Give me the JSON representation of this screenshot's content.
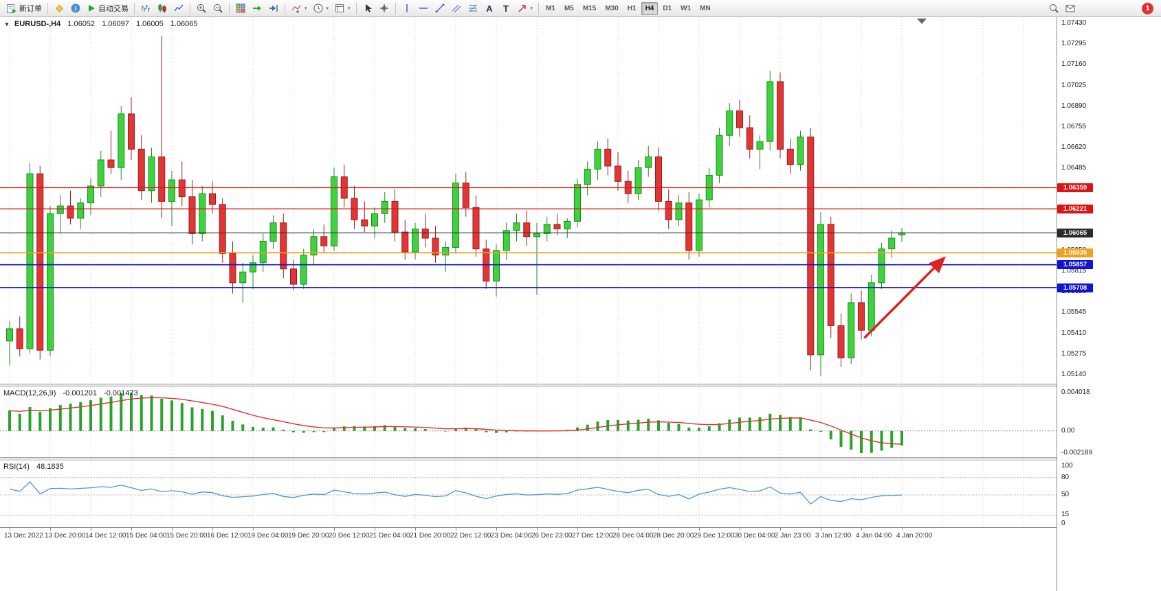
{
  "toolbar": {
    "new_order_label": "新订单",
    "auto_trading_label": "自动交易",
    "timeframes": [
      "M1",
      "M5",
      "M15",
      "M30",
      "H1",
      "H4",
      "D1",
      "W1",
      "MN"
    ],
    "active_timeframe": "H4",
    "notification_count": "1"
  },
  "chart_header": {
    "symbol": "EURUSD-,H4",
    "open": "1.06052",
    "high": "1.06097",
    "low": "1.06005",
    "close": "1.06065"
  },
  "indicators": {
    "macd_label": "MACD(12,26,9)",
    "macd_value": "-0.001201",
    "macd_signal_value": "-0.001473",
    "macd_scale_top": "0.004018",
    "macd_scale_zero": "0.00",
    "macd_scale_bottom": "-0.002189",
    "rsi_label": "RSI(14)",
    "rsi_value": "48.1835",
    "rsi_scale": [
      "100",
      "80",
      "50",
      "15",
      "0"
    ]
  },
  "chart_data": {
    "type": "candlestick",
    "symbol": "EURUSD",
    "timeframe": "H4",
    "current_ohlc": [
      1.06052,
      1.06097,
      1.06005,
      1.06065
    ],
    "price_axis": {
      "top_label": 1.0743,
      "bottom_label": 1.0514,
      "step": 0.00135
    },
    "scale_labels": [
      "1.07430",
      "1.07295",
      "1.07160",
      "1.07025",
      "1.06890",
      "1.06755",
      "1.06620",
      "1.06485",
      "1.05950",
      "1.05815",
      "1.05680",
      "1.05545",
      "1.05410",
      "1.05275",
      "1.05140"
    ],
    "hlines": [
      {
        "label": "1.06359",
        "price": 1.06359,
        "color": "#d81616",
        "width": 1.3,
        "role": "resistance-line"
      },
      {
        "label": "1.06221",
        "price": 1.06221,
        "color": "#d81616",
        "width": 1.3,
        "role": "resistance-line"
      },
      {
        "label": "1.06065",
        "price": 1.06065,
        "color": "#2b2b2b",
        "width": 1.0,
        "role": "current-price-line"
      },
      {
        "label": "1.05935",
        "price": 1.05935,
        "color": "#efa11e",
        "width": 1.7,
        "role": "support-line"
      },
      {
        "label": "1.05857",
        "price": 1.05857,
        "color": "#1414cf",
        "width": 1.7,
        "role": "support-line"
      },
      {
        "label": "1.05708",
        "price": 1.05708,
        "color": "#1414cf",
        "width": 1.7,
        "role": "support-line"
      }
    ],
    "time_labels": [
      "13 Dec 2022",
      "13 Dec 20:00",
      "14 Dec 12:00",
      "15 Dec 04:00",
      "15 Dec 20:00",
      "16 Dec 12:00",
      "19 Dec 04:00",
      "19 Dec 20:00",
      "20 Dec 12:00",
      "21 Dec 04:00",
      "21 Dec 20:00",
      "22 Dec 12:00",
      "23 Dec 04:00",
      "26 Dec 23:00",
      "27 Dec 12:00",
      "28 Dec 04:00",
      "28 Dec 20:00",
      "29 Dec 12:00",
      "30 Dec 04:00",
      "2 Jan 23:00",
      "3 Jan 12:00",
      "4 Jan 04:00",
      "4 Jan 20:00"
    ],
    "candles": [
      [
        1.0536,
        1.0549,
        1.052,
        1.0544
      ],
      [
        1.0544,
        1.0552,
        1.0526,
        1.0531
      ],
      [
        1.0531,
        1.0652,
        1.0528,
        1.0645
      ],
      [
        1.0645,
        1.065,
        1.0524,
        1.053
      ],
      [
        1.053,
        1.0624,
        1.0526,
        1.0619
      ],
      [
        1.0619,
        1.0631,
        1.0606,
        1.0624
      ],
      [
        1.0624,
        1.0634,
        1.0612,
        1.0616
      ],
      [
        1.0616,
        1.0629,
        1.0609,
        1.0626
      ],
      [
        1.0626,
        1.0642,
        1.0618,
        1.0637
      ],
      [
        1.0637,
        1.066,
        1.063,
        1.0654
      ],
      [
        1.0654,
        1.0673,
        1.0645,
        1.0649
      ],
      [
        1.0649,
        1.0689,
        1.0641,
        1.0684
      ],
      [
        1.0684,
        1.0695,
        1.0654,
        1.0661
      ],
      [
        1.0661,
        1.067,
        1.0628,
        1.0634
      ],
      [
        1.0634,
        1.0662,
        1.0626,
        1.0656
      ],
      [
        1.0656,
        1.0735,
        1.0616,
        1.0627
      ],
      [
        1.0627,
        1.0647,
        1.0611,
        1.0641
      ],
      [
        1.0641,
        1.0653,
        1.0624,
        1.063
      ],
      [
        1.063,
        1.0641,
        1.0599,
        1.0606
      ],
      [
        1.0606,
        1.0637,
        1.0601,
        1.0632
      ],
      [
        1.0632,
        1.064,
        1.0619,
        1.0625
      ],
      [
        1.0625,
        1.0629,
        1.0587,
        1.0593
      ],
      [
        1.0593,
        1.0601,
        1.0567,
        1.0574
      ],
      [
        1.0574,
        1.0587,
        1.0561,
        1.0581
      ],
      [
        1.0581,
        1.0592,
        1.057,
        1.0587
      ],
      [
        1.0587,
        1.0606,
        1.0581,
        1.0601
      ],
      [
        1.0601,
        1.0618,
        1.0596,
        1.0613
      ],
      [
        1.0613,
        1.0619,
        1.0577,
        1.0583
      ],
      [
        1.0583,
        1.0589,
        1.0569,
        1.0573
      ],
      [
        1.0573,
        1.0596,
        1.057,
        1.0592
      ],
      [
        1.0592,
        1.0609,
        1.0586,
        1.0604
      ],
      [
        1.0604,
        1.0612,
        1.0594,
        1.0598
      ],
      [
        1.0598,
        1.0649,
        1.0595,
        1.0643
      ],
      [
        1.0643,
        1.0651,
        1.0623,
        1.0629
      ],
      [
        1.0629,
        1.0637,
        1.0609,
        1.0615
      ],
      [
        1.0615,
        1.0627,
        1.0607,
        1.0611
      ],
      [
        1.0611,
        1.0623,
        1.0603,
        1.0619
      ],
      [
        1.0619,
        1.0633,
        1.0613,
        1.0627
      ],
      [
        1.0627,
        1.0635,
        1.0601,
        1.0607
      ],
      [
        1.0607,
        1.0615,
        1.0589,
        1.0594
      ],
      [
        1.0594,
        1.0613,
        1.0589,
        1.0609
      ],
      [
        1.0609,
        1.0619,
        1.0597,
        1.0603
      ],
      [
        1.0603,
        1.0611,
        1.0587,
        1.0592
      ],
      [
        1.0592,
        1.0601,
        1.0581,
        1.0597
      ],
      [
        1.0597,
        1.0645,
        1.0593,
        1.0639
      ],
      [
        1.0639,
        1.0646,
        1.0617,
        1.0623
      ],
      [
        1.0623,
        1.0631,
        1.0591,
        1.0596
      ],
      [
        1.0596,
        1.0602,
        1.057,
        1.0575
      ],
      [
        1.0575,
        1.0599,
        1.0565,
        1.0595
      ],
      [
        1.0595,
        1.0613,
        1.0589,
        1.0608
      ],
      [
        1.0608,
        1.0619,
        1.0601,
        1.0613
      ],
      [
        1.0613,
        1.0621,
        1.0598,
        1.0604
      ],
      [
        1.0604,
        1.0613,
        1.0566,
        1.0606
      ],
      [
        1.0606,
        1.0617,
        1.0601,
        1.0612
      ],
      [
        1.0612,
        1.0619,
        1.0605,
        1.0609
      ],
      [
        1.0609,
        1.0616,
        1.0603,
        1.0614
      ],
      [
        1.0614,
        1.0642,
        1.061,
        1.0638
      ],
      [
        1.0638,
        1.0653,
        1.0631,
        1.0648
      ],
      [
        1.0648,
        1.0666,
        1.0641,
        1.0661
      ],
      [
        1.0661,
        1.0668,
        1.0644,
        1.065
      ],
      [
        1.065,
        1.0659,
        1.0634,
        1.064
      ],
      [
        1.064,
        1.0647,
        1.0626,
        1.0632
      ],
      [
        1.0632,
        1.0654,
        1.0628,
        1.0649
      ],
      [
        1.0649,
        1.0663,
        1.0643,
        1.0656
      ],
      [
        1.0656,
        1.0662,
        1.0621,
        1.0627
      ],
      [
        1.0627,
        1.0635,
        1.0609,
        1.0615
      ],
      [
        1.0615,
        1.0631,
        1.0611,
        1.0626
      ],
      [
        1.0626,
        1.0633,
        1.0589,
        1.0595
      ],
      [
        1.0595,
        1.0632,
        1.0591,
        1.0628
      ],
      [
        1.0628,
        1.0649,
        1.0623,
        1.0644
      ],
      [
        1.0644,
        1.0675,
        1.0639,
        1.067
      ],
      [
        1.067,
        1.0691,
        1.0663,
        1.0686
      ],
      [
        1.0686,
        1.0693,
        1.0669,
        1.0675
      ],
      [
        1.0675,
        1.0683,
        1.0655,
        1.0661
      ],
      [
        1.0661,
        1.067,
        1.0648,
        1.0666
      ],
      [
        1.0666,
        1.0712,
        1.066,
        1.0705
      ],
      [
        1.0705,
        1.0711,
        1.0655,
        1.0661
      ],
      [
        1.0661,
        1.0668,
        1.0645,
        1.0651
      ],
      [
        1.0651,
        1.0673,
        1.0647,
        1.0669
      ],
      [
        1.0669,
        1.0675,
        1.0517,
        1.0527
      ],
      [
        1.0527,
        1.062,
        1.0513,
        1.0612
      ],
      [
        1.0612,
        1.0617,
        1.0538,
        1.0546
      ],
      [
        1.0546,
        1.0554,
        1.0519,
        1.0525
      ],
      [
        1.0525,
        1.0567,
        1.0521,
        1.0561
      ],
      [
        1.0561,
        1.0569,
        1.0537,
        1.0543
      ],
      [
        1.0543,
        1.0579,
        1.0539,
        1.0574
      ],
      [
        1.0574,
        1.06,
        1.057,
        1.0596
      ],
      [
        1.0596,
        1.0608,
        1.059,
        1.0603
      ],
      [
        1.06052,
        1.06097,
        1.06005,
        1.06065
      ]
    ],
    "arrow": {
      "from": [
        84.3,
        1.0538
      ],
      "to": [
        92.0,
        1.0589
      ],
      "color": "#e02020"
    },
    "colors": {
      "up": "#3fd23f",
      "up_edge": "#1d8a1d",
      "down": "#e23535",
      "down_edge": "#9a1c1c",
      "macd_hist": "#28a428",
      "macd_signal": "#e03030",
      "rsi_line": "#4a96d2",
      "grid": "#cdcdcd"
    },
    "macd_params": {
      "fast": 12,
      "slow": 26,
      "signal": 9
    },
    "rsi_params": {
      "period": 14,
      "levels": [
        80,
        50,
        15
      ]
    }
  }
}
